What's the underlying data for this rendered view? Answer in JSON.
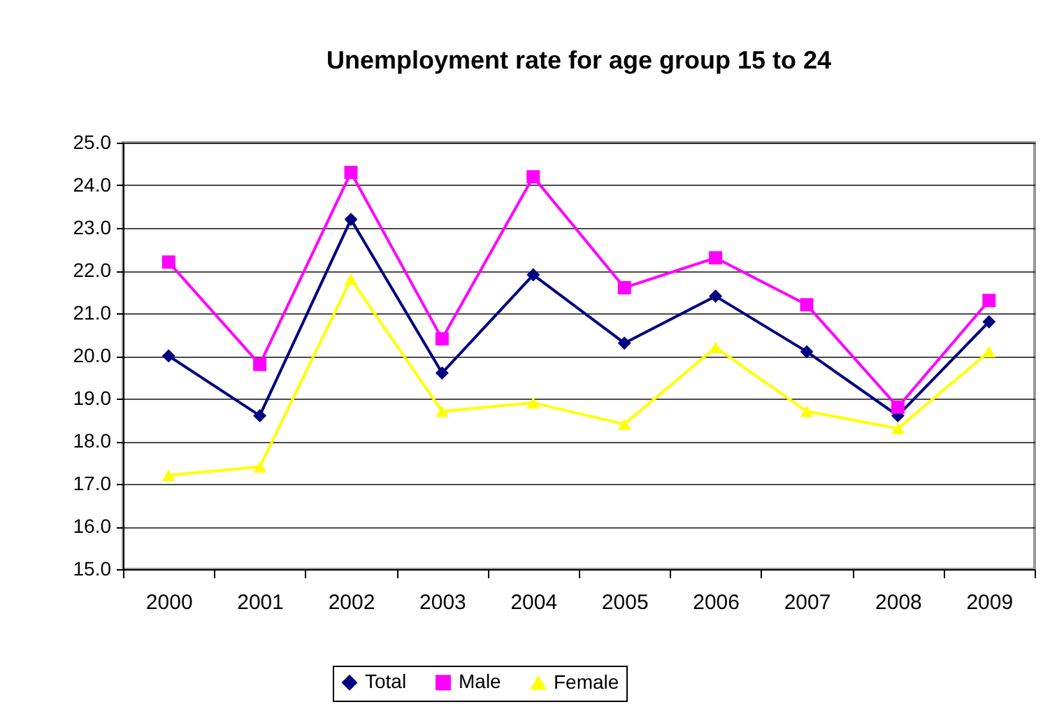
{
  "chart_data": {
    "type": "line",
    "title": "Unemployment rate for age group 15 to 24",
    "categories": [
      "2000",
      "2001",
      "2002",
      "2003",
      "2004",
      "2005",
      "2006",
      "2007",
      "2008",
      "2009"
    ],
    "series": [
      {
        "name": "Total",
        "color": "#000080",
        "marker": "diamond",
        "values": [
          20.0,
          18.6,
          23.2,
          19.6,
          21.9,
          20.3,
          21.4,
          20.1,
          18.6,
          20.8
        ]
      },
      {
        "name": "Male",
        "color": "#ff00ff",
        "marker": "square",
        "values": [
          22.2,
          19.8,
          24.3,
          20.4,
          24.2,
          21.6,
          22.3,
          21.2,
          18.8,
          21.3
        ]
      },
      {
        "name": "Female",
        "color": "#ffff00",
        "marker": "triangle",
        "values": [
          17.2,
          17.4,
          21.8,
          18.7,
          18.9,
          18.4,
          20.2,
          18.7,
          18.3,
          20.1
        ]
      }
    ],
    "ylim": [
      15,
      25
    ],
    "yticks": [
      {
        "value": 15,
        "label": "15.0"
      },
      {
        "value": 16,
        "label": "16.0"
      },
      {
        "value": 17,
        "label": "17.0"
      },
      {
        "value": 18,
        "label": "18.0"
      },
      {
        "value": 19,
        "label": "19.0"
      },
      {
        "value": 20,
        "label": "20.0"
      },
      {
        "value": 21,
        "label": "21.0"
      },
      {
        "value": 22,
        "label": "22.0"
      },
      {
        "value": 23,
        "label": "23.0"
      },
      {
        "value": 24,
        "label": "24.0"
      },
      {
        "value": 25,
        "label": "25.0"
      }
    ],
    "grid": "y",
    "legend": "bottom",
    "line_style": "solid"
  }
}
